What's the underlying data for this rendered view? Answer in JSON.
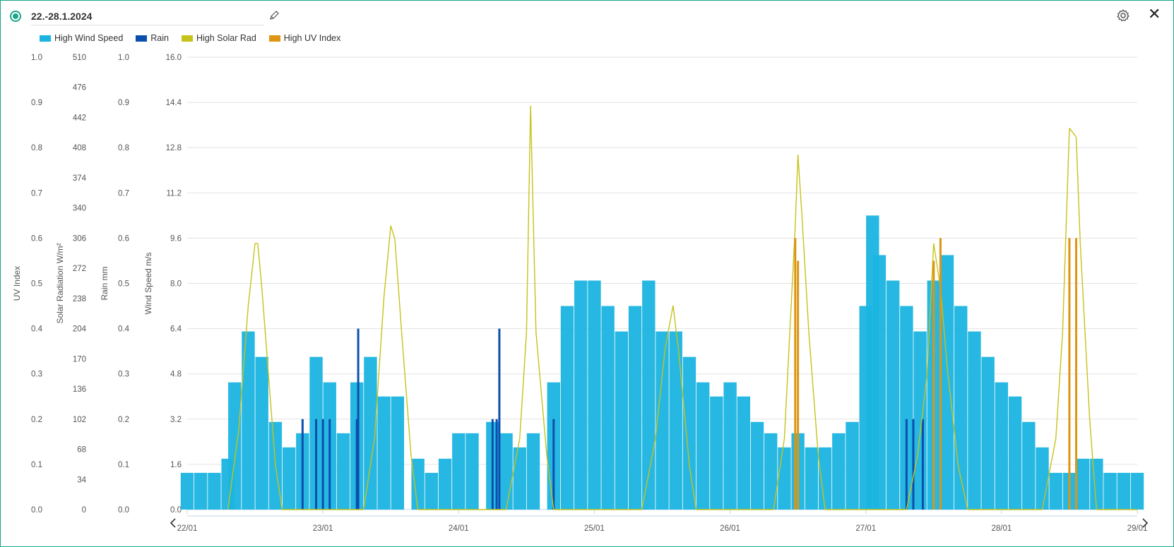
{
  "header": {
    "title": "22.-28.1.2024",
    "icons": [
      "pencil-icon",
      "gear-icon",
      "close-icon"
    ]
  },
  "legend": [
    {
      "label": "High Wind Speed",
      "color": "#1ab4e0"
    },
    {
      "label": "Rain",
      "color": "#0b4fae"
    },
    {
      "label": "High Solar Rad",
      "color": "#c6c21a"
    },
    {
      "label": "High UV Index",
      "color": "#dd9512"
    }
  ],
  "chart_data": {
    "type": "bar",
    "x_ticks": [
      "22/01",
      "23/01",
      "24/01",
      "25/01",
      "26/01",
      "27/01",
      "28/01",
      "29/01"
    ],
    "grid": true,
    "axes": [
      {
        "key": "uv",
        "label": "UV Index",
        "min": 0,
        "max": 1.0,
        "ticks": [
          "0.0",
          "0.1",
          "0.2",
          "0.3",
          "0.4",
          "0.5",
          "0.6",
          "0.7",
          "0.8",
          "0.9",
          "1.0"
        ]
      },
      {
        "key": "solar",
        "label": "Solar Radiation W/m²",
        "min": 0,
        "max": 510,
        "ticks": [
          "0",
          "34",
          "68",
          "102",
          "136",
          "170",
          "204",
          "238",
          "272",
          "306",
          "340",
          "374",
          "408",
          "442",
          "476",
          "510"
        ]
      },
      {
        "key": "rain",
        "label": "Rain mm",
        "min": 0,
        "max": 1.0,
        "ticks": [
          "0.0",
          "0.1",
          "0.2",
          "0.3",
          "0.4",
          "0.5",
          "0.6",
          "0.7",
          "0.8",
          "0.9",
          "1.0"
        ]
      },
      {
        "key": "wind",
        "label": "Wind Speed m/s",
        "min": 0,
        "max": 16.0,
        "ticks": [
          "0.0",
          "1.6",
          "3.2",
          "4.8",
          "6.4",
          "8.0",
          "9.6",
          "11.2",
          "12.8",
          "14.4",
          "16.0"
        ]
      }
    ],
    "series": [
      {
        "name": "High Wind Speed",
        "axis": "wind",
        "style": "bars",
        "points": [
          [
            0.0,
            1.3
          ],
          [
            0.1,
            1.3
          ],
          [
            0.2,
            1.3
          ],
          [
            0.3,
            1.8
          ],
          [
            0.35,
            4.5
          ],
          [
            0.45,
            6.3
          ],
          [
            0.55,
            5.4
          ],
          [
            0.65,
            3.1
          ],
          [
            0.75,
            2.2
          ],
          [
            0.85,
            2.7
          ],
          [
            0.95,
            5.4
          ],
          [
            1.05,
            4.5
          ],
          [
            1.15,
            2.7
          ],
          [
            1.25,
            4.5
          ],
          [
            1.35,
            5.4
          ],
          [
            1.45,
            4.0
          ],
          [
            1.55,
            4.0
          ],
          [
            1.7,
            1.8
          ],
          [
            1.8,
            1.3
          ],
          [
            1.9,
            1.8
          ],
          [
            2.0,
            2.7
          ],
          [
            2.1,
            2.7
          ],
          [
            2.25,
            3.1
          ],
          [
            2.35,
            2.7
          ],
          [
            2.45,
            2.2
          ],
          [
            2.55,
            2.7
          ],
          [
            2.7,
            4.5
          ],
          [
            2.8,
            7.2
          ],
          [
            2.9,
            8.1
          ],
          [
            3.0,
            8.1
          ],
          [
            3.1,
            7.2
          ],
          [
            3.2,
            6.3
          ],
          [
            3.3,
            7.2
          ],
          [
            3.4,
            8.1
          ],
          [
            3.5,
            6.3
          ],
          [
            3.6,
            6.3
          ],
          [
            3.7,
            5.4
          ],
          [
            3.8,
            4.5
          ],
          [
            3.9,
            4.0
          ],
          [
            4.0,
            4.5
          ],
          [
            4.1,
            4.0
          ],
          [
            4.2,
            3.1
          ],
          [
            4.3,
            2.7
          ],
          [
            4.4,
            2.2
          ],
          [
            4.5,
            2.7
          ],
          [
            4.6,
            2.2
          ],
          [
            4.7,
            2.2
          ],
          [
            4.8,
            2.7
          ],
          [
            4.9,
            3.1
          ],
          [
            5.0,
            7.2
          ],
          [
            5.05,
            10.4
          ],
          [
            5.1,
            9.0
          ],
          [
            5.2,
            8.1
          ],
          [
            5.3,
            7.2
          ],
          [
            5.4,
            6.3
          ],
          [
            5.5,
            8.1
          ],
          [
            5.6,
            9.0
          ],
          [
            5.7,
            7.2
          ],
          [
            5.8,
            6.3
          ],
          [
            5.9,
            5.4
          ],
          [
            6.0,
            4.5
          ],
          [
            6.1,
            4.0
          ],
          [
            6.2,
            3.1
          ],
          [
            6.3,
            2.2
          ],
          [
            6.4,
            1.3
          ],
          [
            6.5,
            1.3
          ],
          [
            6.6,
            1.8
          ],
          [
            6.7,
            1.8
          ],
          [
            6.8,
            1.3
          ],
          [
            6.9,
            1.3
          ],
          [
            7.0,
            1.3
          ]
        ]
      },
      {
        "name": "Rain",
        "axis": "rain",
        "style": "bars",
        "points": [
          [
            0.85,
            0.2
          ],
          [
            0.95,
            0.2
          ],
          [
            1.0,
            0.2
          ],
          [
            1.05,
            0.2
          ],
          [
            1.25,
            0.2
          ],
          [
            1.26,
            0.4
          ],
          [
            2.25,
            0.2
          ],
          [
            2.28,
            0.2
          ],
          [
            2.3,
            0.4
          ],
          [
            2.7,
            0.2
          ],
          [
            5.3,
            0.2
          ],
          [
            5.35,
            0.2
          ],
          [
            5.42,
            0.2
          ]
        ]
      },
      {
        "name": "High Solar Rad",
        "axis": "solar",
        "style": "line",
        "points": [
          [
            0.3,
            0
          ],
          [
            0.38,
            90
          ],
          [
            0.45,
            230
          ],
          [
            0.5,
            300
          ],
          [
            0.52,
            300
          ],
          [
            0.55,
            250
          ],
          [
            0.6,
            150
          ],
          [
            0.65,
            50
          ],
          [
            0.7,
            0
          ],
          [
            1.3,
            0
          ],
          [
            1.38,
            80
          ],
          [
            1.45,
            240
          ],
          [
            1.5,
            320
          ],
          [
            1.53,
            305
          ],
          [
            1.58,
            200
          ],
          [
            1.65,
            60
          ],
          [
            1.7,
            0
          ],
          [
            2.35,
            0
          ],
          [
            2.45,
            80
          ],
          [
            2.5,
            200
          ],
          [
            2.53,
            455
          ],
          [
            2.57,
            200
          ],
          [
            2.65,
            60
          ],
          [
            2.7,
            0
          ],
          [
            3.35,
            0
          ],
          [
            3.45,
            80
          ],
          [
            3.52,
            180
          ],
          [
            3.58,
            230
          ],
          [
            3.62,
            180
          ],
          [
            3.7,
            50
          ],
          [
            3.75,
            0
          ],
          [
            4.32,
            0
          ],
          [
            4.4,
            80
          ],
          [
            4.48,
            320
          ],
          [
            4.5,
            400
          ],
          [
            4.53,
            330
          ],
          [
            4.58,
            200
          ],
          [
            4.65,
            60
          ],
          [
            4.7,
            0
          ],
          [
            5.3,
            0
          ],
          [
            5.38,
            60
          ],
          [
            5.45,
            150
          ],
          [
            5.5,
            300
          ],
          [
            5.55,
            250
          ],
          [
            5.6,
            160
          ],
          [
            5.68,
            50
          ],
          [
            5.75,
            0
          ],
          [
            6.3,
            0
          ],
          [
            6.4,
            80
          ],
          [
            6.45,
            200
          ],
          [
            6.5,
            430
          ],
          [
            6.55,
            420
          ],
          [
            6.58,
            300
          ],
          [
            6.65,
            100
          ],
          [
            6.7,
            0
          ],
          [
            7.0,
            0
          ]
        ]
      },
      {
        "name": "High UV Index",
        "axis": "uv",
        "style": "bars",
        "points": [
          [
            4.48,
            0.6
          ],
          [
            4.5,
            0.55
          ],
          [
            5.5,
            0.55
          ],
          [
            5.55,
            0.6
          ],
          [
            6.5,
            0.6
          ],
          [
            6.55,
            0.6
          ]
        ]
      }
    ],
    "legend_position": "top-left"
  }
}
